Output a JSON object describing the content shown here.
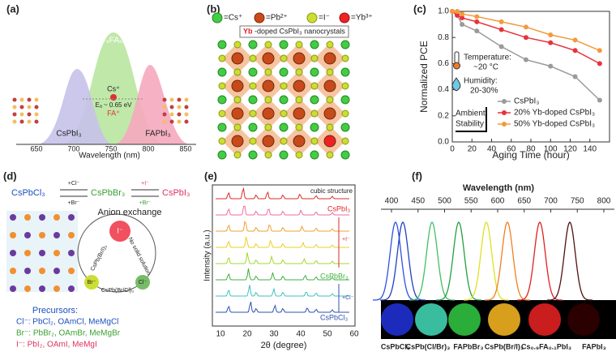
{
  "panels": {
    "a": {
      "label": "(a)",
      "top_label": "Cs₁₋ₓFAₓPbI₃",
      "left_label": "CsPbI₃",
      "right_label": "FAPbI₃",
      "cs": "Cs⁺",
      "fa": "FA⁺",
      "ea": "Eₐ ~ 0.65 eV",
      "x_label": "Wavelength (nm)",
      "xticks": [
        "650",
        "700",
        "750",
        "800",
        "850"
      ]
    },
    "b": {
      "label": "(b)",
      "legend": [
        "=Cs⁺",
        "=Pb²⁺",
        "=I⁻",
        "=Yb³⁺"
      ],
      "box_highlight": "Yb",
      "box_text": "-doped CsPbI₃ nanocrystals"
    },
    "d": {
      "label": "(d)",
      "cl": "CsPbCl₃",
      "br": "CsPbBr₃",
      "i": "CsPbI₃",
      "arrow1_top": "+Cl⁻",
      "arrow1_bottom": "+Br⁻",
      "arrow2_top": "+I⁻",
      "arrow2_bottom": "+Br⁻",
      "anion_exchange": "Anion exchange",
      "ion_i": "I⁻",
      "ion_br": "Br⁻",
      "ion_cl": "Cl⁻",
      "left_path": "CsPb(Br/I)₃",
      "bottom_path": "CsPb(Br/Cl)₃",
      "right_path": "No solid solution",
      "precursors": "Precursors:",
      "precursor_cl": "Cl⁻: PbCl₂, OAmCl, MeMgCl",
      "precursor_br": "Br⁻: PbBr₂, OAmBr, MeMgBr",
      "precursor_i": "I⁻: PbI₂, OAmI, MeMgI"
    },
    "e": {
      "label": "(e)",
      "note": "cubic structure",
      "top": "CsPbI₃",
      "middle": "CsPbBr₃",
      "bottom": "CsPbCl₃",
      "plus_i": "+I⁻",
      "plus_cl": "+Cl⁻",
      "y_label": "Intensity (a.u.)",
      "x_label": "2θ (degree)",
      "xticks": [
        "10",
        "20",
        "30",
        "40",
        "50",
        "60"
      ]
    },
    "f": {
      "label": "(f)",
      "x_label": "Wavelength (nm)",
      "xticks": [
        "400",
        "450",
        "500",
        "550",
        "600",
        "650",
        "700",
        "750",
        "800"
      ],
      "samples": [
        "CsPbCl₃",
        "CsPb(Cl/Br)₃",
        "FAPbBr₃",
        "CsPb(Br/I)₃",
        "Cs₀.₉FA₀.₁PbI₃",
        "FAPbI₃"
      ]
    }
  },
  "chart_data": {
    "type": "line",
    "label": "(c)",
    "x_label": "Aging Time (hour)",
    "y_label": "Normalized PCE",
    "x": [
      0,
      5,
      10,
      25,
      50,
      75,
      100,
      125,
      150
    ],
    "series": [
      {
        "name": "CsPbI₃",
        "color": "#9a9a9a",
        "values": [
          1.0,
          0.97,
          0.9,
          0.85,
          0.73,
          0.63,
          0.58,
          0.5,
          0.32
        ]
      },
      {
        "name": "20% Yb-doped CsPbI₃",
        "color": "#e8323c",
        "values": [
          1.0,
          0.97,
          0.95,
          0.92,
          0.86,
          0.8,
          0.76,
          0.7,
          0.6
        ]
      },
      {
        "name": "50% Yb-doped CsPbI₃",
        "color": "#f39a3c",
        "values": [
          1.0,
          1.0,
          0.98,
          0.96,
          0.92,
          0.88,
          0.82,
          0.78,
          0.7
        ]
      }
    ],
    "xlim": [
      0,
      160
    ],
    "xticks": [
      0,
      20,
      40,
      60,
      80,
      100,
      120,
      140
    ],
    "ylim": [
      0,
      1
    ],
    "yticks": [
      {
        "value": 0,
        "label": "0.0"
      },
      0.2,
      0.4,
      0.6,
      0.8,
      {
        "value": 1,
        "label": "1.0"
      }
    ],
    "legend": "lower-right",
    "annotations": [
      "Temperature:",
      "~20 °C",
      "Humidity:",
      "20-30%",
      "Ambient",
      "Stability"
    ]
  }
}
